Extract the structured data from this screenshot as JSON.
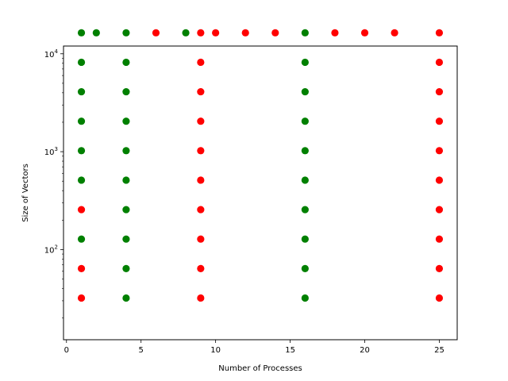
{
  "chart_data": {
    "type": "scatter",
    "title": "",
    "xlabel": "Number of Processes",
    "ylabel": "Size of Vectors",
    "xlim": [
      -0.2,
      26.2
    ],
    "ylim": [
      12,
      12000
    ],
    "yscale": "log",
    "grid": false,
    "x_ticks": [
      0,
      5,
      10,
      15,
      20,
      25
    ],
    "y_ticks": [
      {
        "value": 100,
        "base": "10",
        "exp": "2"
      },
      {
        "value": 1000,
        "base": "10",
        "exp": "3"
      },
      {
        "value": 10000,
        "base": "10",
        "exp": "4"
      }
    ],
    "series": [
      {
        "color": "#008000",
        "points": [
          [
            1,
            16384
          ],
          [
            2,
            16384
          ],
          [
            4,
            16384
          ],
          [
            8,
            16384
          ],
          [
            16,
            16384
          ],
          [
            1,
            8192
          ],
          [
            4,
            8192
          ],
          [
            16,
            8192
          ],
          [
            1,
            4096
          ],
          [
            4,
            4096
          ],
          [
            16,
            4096
          ],
          [
            1,
            2048
          ],
          [
            4,
            2048
          ],
          [
            16,
            2048
          ],
          [
            1,
            1024
          ],
          [
            4,
            1024
          ],
          [
            16,
            1024
          ],
          [
            1,
            512
          ],
          [
            4,
            512
          ],
          [
            16,
            512
          ],
          [
            4,
            256
          ],
          [
            16,
            256
          ],
          [
            1,
            128
          ],
          [
            4,
            128
          ],
          [
            16,
            128
          ],
          [
            4,
            64
          ],
          [
            16,
            64
          ],
          [
            4,
            32
          ],
          [
            16,
            32
          ]
        ]
      },
      {
        "color": "#ff0000",
        "points": [
          [
            6,
            16384
          ],
          [
            9,
            16384
          ],
          [
            10,
            16384
          ],
          [
            12,
            16384
          ],
          [
            14,
            16384
          ],
          [
            18,
            16384
          ],
          [
            20,
            16384
          ],
          [
            22,
            16384
          ],
          [
            25,
            16384
          ],
          [
            9,
            8192
          ],
          [
            25,
            8192
          ],
          [
            9,
            4096
          ],
          [
            25,
            4096
          ],
          [
            9,
            2048
          ],
          [
            25,
            2048
          ],
          [
            9,
            1024
          ],
          [
            25,
            1024
          ],
          [
            9,
            512
          ],
          [
            25,
            512
          ],
          [
            1,
            256
          ],
          [
            9,
            256
          ],
          [
            25,
            256
          ],
          [
            9,
            128
          ],
          [
            25,
            128
          ],
          [
            1,
            64
          ],
          [
            9,
            64
          ],
          [
            25,
            64
          ],
          [
            1,
            32
          ],
          [
            9,
            32
          ],
          [
            25,
            32
          ]
        ]
      }
    ]
  }
}
